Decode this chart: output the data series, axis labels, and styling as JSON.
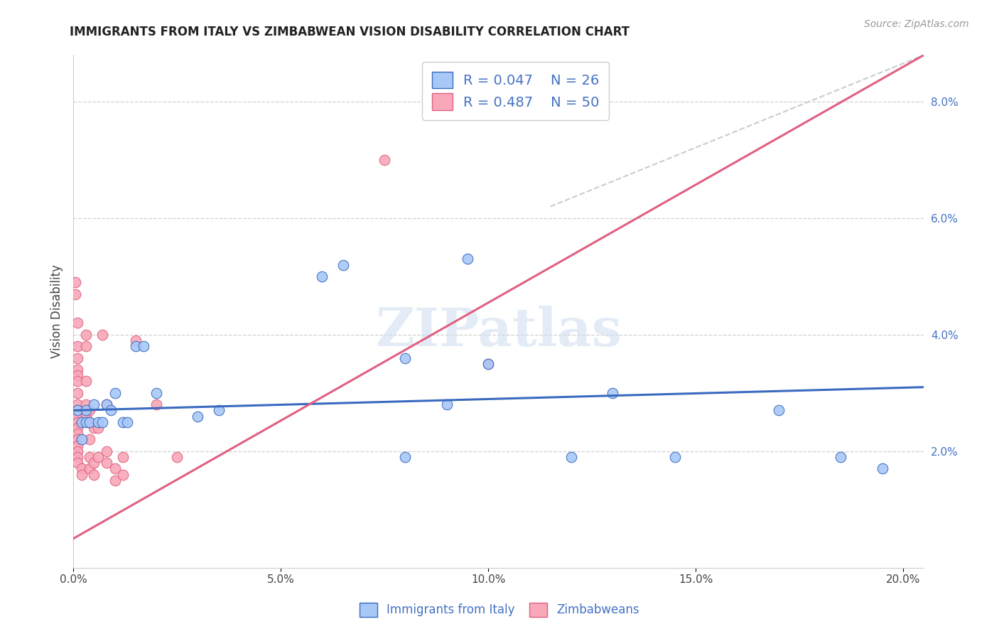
{
  "title": "IMMIGRANTS FROM ITALY VS ZIMBABWEAN VISION DISABILITY CORRELATION CHART",
  "source": "Source: ZipAtlas.com",
  "ylabel": "Vision Disability",
  "xlim": [
    0.0,
    0.205
  ],
  "ylim": [
    0.0,
    0.088
  ],
  "x_ticks": [
    0.0,
    0.05,
    0.1,
    0.15,
    0.2
  ],
  "x_tick_labels": [
    "0.0%",
    "5.0%",
    "10.0%",
    "15.0%",
    "20.0%"
  ],
  "y_ticks_right": [
    0.02,
    0.04,
    0.06,
    0.08
  ],
  "y_tick_labels_right": [
    "2.0%",
    "4.0%",
    "6.0%",
    "8.0%"
  ],
  "watermark": "ZIPatlas",
  "italy_color": "#a8c8f8",
  "zimbabwe_color": "#f8a8b8",
  "italy_line_color": "#3a6abf",
  "zimbabwe_line_color": "#e06080",
  "diagonal_line_color": "#cccccc",
  "italy_line": [
    [
      0.0,
      0.027
    ],
    [
      0.205,
      0.031
    ]
  ],
  "zimbabwe_line": [
    [
      0.0,
      0.005
    ],
    [
      0.205,
      0.088
    ]
  ],
  "diagonal_line": [
    [
      0.115,
      0.062
    ],
    [
      0.205,
      0.088
    ]
  ],
  "italy_points": [
    [
      0.001,
      0.027
    ],
    [
      0.002,
      0.025
    ],
    [
      0.002,
      0.022
    ],
    [
      0.003,
      0.027
    ],
    [
      0.003,
      0.025
    ],
    [
      0.004,
      0.025
    ],
    [
      0.005,
      0.028
    ],
    [
      0.006,
      0.025
    ],
    [
      0.007,
      0.025
    ],
    [
      0.008,
      0.028
    ],
    [
      0.009,
      0.027
    ],
    [
      0.01,
      0.03
    ],
    [
      0.012,
      0.025
    ],
    [
      0.013,
      0.025
    ],
    [
      0.015,
      0.038
    ],
    [
      0.017,
      0.038
    ],
    [
      0.02,
      0.03
    ],
    [
      0.03,
      0.026
    ],
    [
      0.035,
      0.027
    ],
    [
      0.06,
      0.05
    ],
    [
      0.065,
      0.052
    ],
    [
      0.08,
      0.036
    ],
    [
      0.09,
      0.028
    ],
    [
      0.1,
      0.035
    ],
    [
      0.095,
      0.053
    ],
    [
      0.13,
      0.03
    ],
    [
      0.08,
      0.019
    ],
    [
      0.12,
      0.019
    ],
    [
      0.145,
      0.019
    ],
    [
      0.17,
      0.027
    ],
    [
      0.185,
      0.019
    ],
    [
      0.195,
      0.017
    ]
  ],
  "zimbabwe_points": [
    [
      0.0005,
      0.049
    ],
    [
      0.0005,
      0.047
    ],
    [
      0.001,
      0.042
    ],
    [
      0.001,
      0.038
    ],
    [
      0.001,
      0.036
    ],
    [
      0.001,
      0.034
    ],
    [
      0.001,
      0.033
    ],
    [
      0.001,
      0.032
    ],
    [
      0.001,
      0.03
    ],
    [
      0.001,
      0.028
    ],
    [
      0.001,
      0.027
    ],
    [
      0.001,
      0.026
    ],
    [
      0.001,
      0.025
    ],
    [
      0.001,
      0.024
    ],
    [
      0.001,
      0.023
    ],
    [
      0.001,
      0.022
    ],
    [
      0.001,
      0.021
    ],
    [
      0.001,
      0.02
    ],
    [
      0.001,
      0.019
    ],
    [
      0.001,
      0.018
    ],
    [
      0.002,
      0.017
    ],
    [
      0.002,
      0.016
    ],
    [
      0.003,
      0.04
    ],
    [
      0.003,
      0.038
    ],
    [
      0.003,
      0.032
    ],
    [
      0.003,
      0.028
    ],
    [
      0.003,
      0.026
    ],
    [
      0.004,
      0.027
    ],
    [
      0.004,
      0.025
    ],
    [
      0.004,
      0.022
    ],
    [
      0.004,
      0.019
    ],
    [
      0.004,
      0.017
    ],
    [
      0.005,
      0.024
    ],
    [
      0.005,
      0.018
    ],
    [
      0.005,
      0.016
    ],
    [
      0.006,
      0.024
    ],
    [
      0.006,
      0.019
    ],
    [
      0.007,
      0.04
    ],
    [
      0.008,
      0.028
    ],
    [
      0.008,
      0.02
    ],
    [
      0.008,
      0.018
    ],
    [
      0.01,
      0.017
    ],
    [
      0.01,
      0.015
    ],
    [
      0.012,
      0.019
    ],
    [
      0.012,
      0.016
    ],
    [
      0.015,
      0.039
    ],
    [
      0.02,
      0.028
    ],
    [
      0.025,
      0.019
    ],
    [
      0.075,
      0.07
    ],
    [
      0.1,
      0.035
    ]
  ]
}
